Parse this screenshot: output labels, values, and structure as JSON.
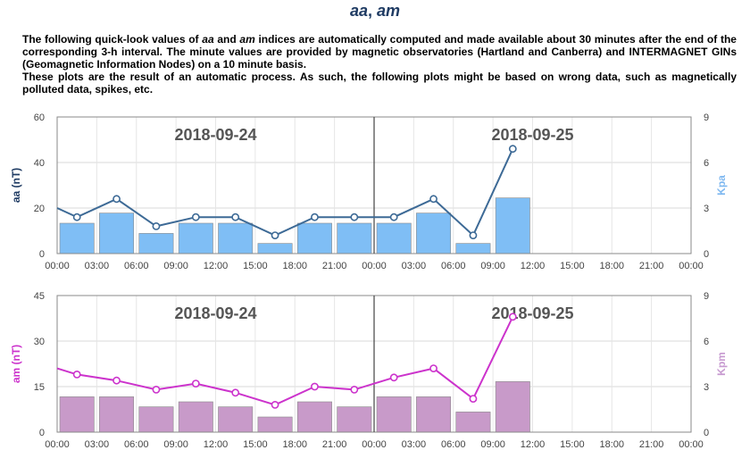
{
  "page": {
    "title_em1": "aa",
    "title_sep": ", ",
    "title_em2": "am",
    "intro1_a": "The following quick-look values of ",
    "intro1_em1": "aa",
    "intro1_b": " and ",
    "intro1_em2": "am",
    "intro1_c": " indices are automatically computed and made available about 30 minutes after the end of the corresponding 3-h interval. The minute values are provided by magnetic observatories (Hartland and Canberra) and INTERMAGNET GINs (Geomagnetic Information Nodes) on a 10 minute basis.",
    "intro2": "These plots are the result of an automatic process. As such, the following plots might be based on wrong data, such as magnetically polluted data, spikes, etc."
  },
  "chart_data": [
    {
      "id": "aa",
      "type": "bar+line",
      "dates": [
        "2018-09-24",
        "2018-09-25"
      ],
      "x_ticks": [
        "00:00",
        "03:00",
        "06:00",
        "09:00",
        "12:00",
        "15:00",
        "18:00",
        "21:00",
        "00:00",
        "03:00",
        "06:00",
        "09:00",
        "12:00",
        "15:00",
        "18:00",
        "21:00",
        "00:00"
      ],
      "x_range_hours": [
        0,
        48
      ],
      "y_left": {
        "label": "aa (nT)",
        "ticks": [
          "0",
          "20",
          "40",
          "60"
        ],
        "min": 0,
        "max": 60,
        "color": "#1f3b63"
      },
      "y_right": {
        "label": "Kpa",
        "ticks": [
          "0",
          "3",
          "6",
          "9"
        ],
        "min": 0,
        "max": 9,
        "color": "#7fb8f0"
      },
      "bars": {
        "name": "Kpa",
        "color": "#7fbef5",
        "start_hours": [
          0,
          3,
          6,
          9,
          12,
          15,
          18,
          21,
          24,
          27,
          30,
          33
        ],
        "values": [
          2.0,
          2.67,
          1.33,
          2.0,
          2.0,
          0.67,
          2.0,
          2.0,
          2.0,
          2.67,
          0.67,
          3.67
        ]
      },
      "line": {
        "name": "aa",
        "color": "#3d6a96",
        "lead_value": 20,
        "x_hours": [
          1.5,
          4.5,
          7.5,
          10.5,
          13.5,
          16.5,
          19.5,
          22.5,
          25.5,
          28.5,
          31.5,
          34.5
        ],
        "values": [
          16,
          24,
          12,
          16,
          16,
          8,
          16,
          16,
          16,
          24,
          8,
          46
        ]
      }
    },
    {
      "id": "am",
      "type": "bar+line",
      "dates": [
        "2018-09-24",
        "2018-09-25"
      ],
      "x_ticks": [
        "00:00",
        "03:00",
        "06:00",
        "09:00",
        "12:00",
        "15:00",
        "18:00",
        "21:00",
        "00:00",
        "03:00",
        "06:00",
        "09:00",
        "12:00",
        "15:00",
        "18:00",
        "21:00",
        "00:00"
      ],
      "x_range_hours": [
        0,
        48
      ],
      "y_left": {
        "label": "am (nT)",
        "ticks": [
          "0",
          "15",
          "30",
          "45"
        ],
        "min": 0,
        "max": 45,
        "color": "#cc33cc"
      },
      "y_right": {
        "label": "Kpm",
        "ticks": [
          "0",
          "3",
          "6",
          "9"
        ],
        "min": 0,
        "max": 9,
        "color": "#c79ad0"
      },
      "bars": {
        "name": "Kpm",
        "color": "#c89ac9",
        "start_hours": [
          0,
          3,
          6,
          9,
          12,
          15,
          18,
          21,
          24,
          27,
          30,
          33
        ],
        "values": [
          2.33,
          2.33,
          1.67,
          2.0,
          1.67,
          1.0,
          2.0,
          1.67,
          2.33,
          2.33,
          1.33,
          3.33
        ]
      },
      "line": {
        "name": "am",
        "color": "#cc33cc",
        "lead_value": 21,
        "x_hours": [
          1.5,
          4.5,
          7.5,
          10.5,
          13.5,
          16.5,
          19.5,
          22.5,
          25.5,
          28.5,
          31.5,
          34.5
        ],
        "values": [
          19,
          17,
          14,
          16,
          13,
          9,
          15,
          14,
          18,
          21,
          11,
          38
        ]
      }
    }
  ]
}
